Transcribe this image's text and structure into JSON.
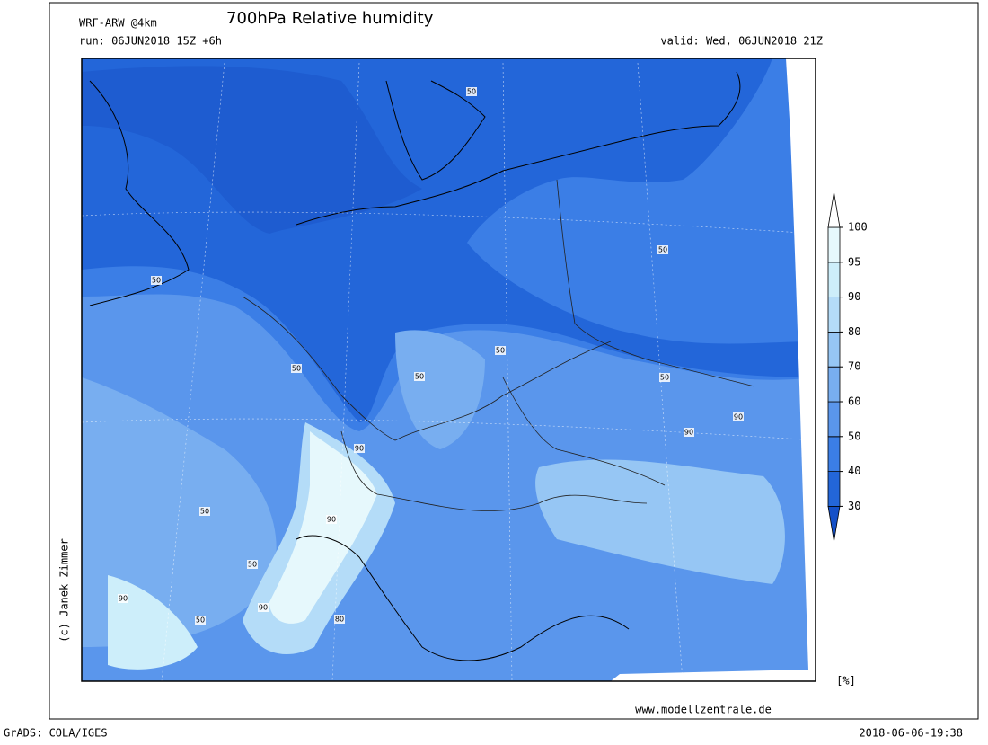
{
  "header": {
    "model": "WRF-ARW @4km",
    "title": "700hPa Relative humidity",
    "run": "run: 06JUN2018 15Z +6h",
    "valid": "valid: Wed, 06JUN2018 21Z"
  },
  "colorbar": {
    "ticks": [
      30,
      40,
      50,
      60,
      70,
      80,
      90,
      95,
      100
    ],
    "unit": "[%]",
    "colors": [
      "#1450c8",
      "#2366d9",
      "#3b7ee6",
      "#5a96ec",
      "#78aef0",
      "#96c6f4",
      "#b4dcf8",
      "#cdeefa",
      "#e6f8fc",
      "#ffffff"
    ]
  },
  "contour_labels": [
    50,
    50,
    50,
    50,
    50,
    50,
    50,
    90,
    90,
    90,
    50,
    90,
    90,
    50,
    80,
    90,
    50
  ],
  "footer": {
    "credit": "(c) Janek Zimmer",
    "website": "www.modellzentrale.de",
    "software": "GrADS: COLA/IGES",
    "timestamp": "2018-06-06-19:38"
  }
}
